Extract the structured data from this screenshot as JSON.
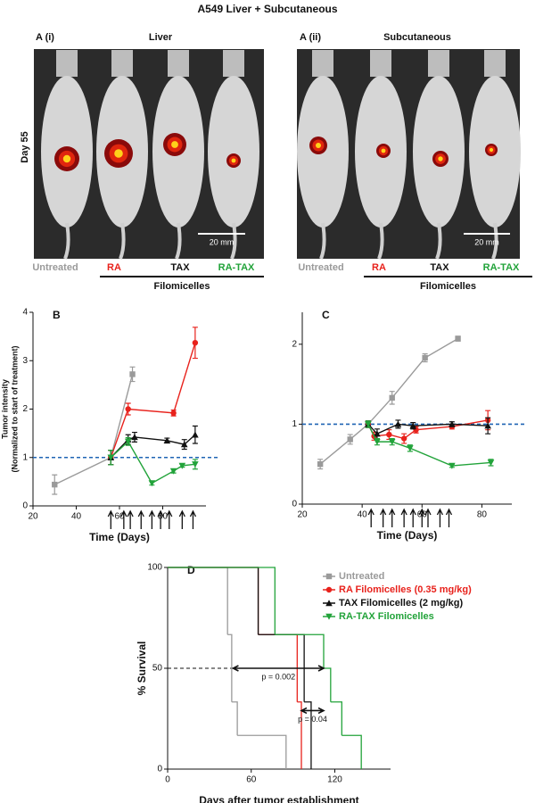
{
  "figure_title": "A549 Liver + Subcutaneous",
  "photo_panels": [
    {
      "label": "A (i)",
      "title": "Liver",
      "timepoint": "Day 55",
      "scale_bar": "20 mm",
      "groups": [
        {
          "name": "Untreated",
          "color": "#9a9a9a"
        },
        {
          "name": "RA",
          "color": "#e8221c"
        },
        {
          "name": "TAX",
          "color": "#111111"
        },
        {
          "name": "RA-TAX",
          "color": "#22a33a"
        }
      ],
      "bracket": "Filomicelles"
    },
    {
      "label": "A (ii)",
      "title": "Subcutaneous",
      "scale_bar": "20 mm",
      "groups": [
        {
          "name": "Untreated",
          "color": "#9a9a9a"
        },
        {
          "name": "RA",
          "color": "#e8221c"
        },
        {
          "name": "TAX",
          "color": "#111111"
        },
        {
          "name": "RA-TAX",
          "color": "#22a33a"
        }
      ],
      "bracket": "Filomicelles"
    }
  ],
  "chart_data": [
    {
      "type": "line",
      "panel": "B",
      "ylabel": [
        "Tumor intensity",
        "(Normalized to start of treatment)"
      ],
      "xlabel": "Time (Days)",
      "xlim": [
        20,
        100
      ],
      "ylim": [
        0,
        4
      ],
      "xticks": [
        20,
        40,
        60,
        80
      ],
      "yticks": [
        0,
        1,
        2,
        3,
        4
      ],
      "reference_line": 1,
      "reference_color": "#1f64b4",
      "arrows": [
        56,
        62,
        65,
        70,
        75,
        79,
        83,
        89,
        94
      ],
      "series": [
        {
          "color": "#9a9a9a",
          "marker": "square",
          "x": [
            30,
            56,
            66
          ],
          "values": [
            0.44,
            1.0,
            2.72
          ],
          "errors": [
            0.2,
            0.15,
            0.15
          ]
        },
        {
          "color": "#e8221c",
          "marker": "circle",
          "x": [
            56,
            64,
            85,
            95
          ],
          "values": [
            1.0,
            2.0,
            1.92,
            3.37
          ],
          "errors": [
            0.15,
            0.12,
            0.06,
            0.32
          ]
        },
        {
          "color": "#111111",
          "marker": "triangle-up",
          "x": [
            56,
            64,
            67,
            82,
            90,
            95
          ],
          "values": [
            1.0,
            1.37,
            1.42,
            1.35,
            1.27,
            1.47
          ],
          "errors": [
            0.15,
            0.1,
            0.1,
            0.05,
            0.1,
            0.18
          ]
        },
        {
          "color": "#22a33a",
          "marker": "triangle-down",
          "x": [
            56,
            64,
            75,
            85,
            89,
            95
          ],
          "values": [
            1.0,
            1.33,
            0.47,
            0.72,
            0.83,
            0.86
          ],
          "errors": [
            0.15,
            0.08,
            0.04,
            0.04,
            0.03,
            0.1
          ]
        }
      ]
    },
    {
      "type": "line",
      "panel": "C",
      "xlabel": "Time (Days)",
      "xlim": [
        20,
        90
      ],
      "ylim": [
        0,
        2.4
      ],
      "xticks": [
        20,
        40,
        60,
        80
      ],
      "yticks": [
        0,
        1,
        2
      ],
      "reference_line": 1,
      "reference_color": "#1f64b4",
      "arrows": [
        43,
        47,
        50,
        54,
        57,
        60,
        62,
        66,
        69
      ],
      "series": [
        {
          "color": "#9a9a9a",
          "marker": "square",
          "x": [
            26,
            36,
            42,
            50,
            61,
            72
          ],
          "values": [
            0.5,
            0.81,
            1.0,
            1.33,
            1.83,
            2.07
          ],
          "errors": [
            0.06,
            0.06,
            0.04,
            0.08,
            0.05,
            0.03
          ]
        },
        {
          "color": "#e8221c",
          "marker": "circle",
          "x": [
            42,
            44,
            49,
            54,
            58,
            70,
            82
          ],
          "values": [
            1.0,
            0.85,
            0.87,
            0.82,
            0.93,
            0.97,
            1.05
          ],
          "errors": [
            0.04,
            0.05,
            0.06,
            0.06,
            0.04,
            0.03,
            0.12
          ]
        },
        {
          "color": "#111111",
          "marker": "triangle-up",
          "x": [
            42,
            45,
            52,
            57,
            70,
            82
          ],
          "values": [
            1.0,
            0.88,
            1.0,
            0.98,
            1.0,
            0.98
          ],
          "errors": [
            0.04,
            0.06,
            0.05,
            0.04,
            0.03,
            0.1
          ]
        },
        {
          "color": "#22a33a",
          "marker": "triangle-down",
          "x": [
            42,
            45,
            50,
            56,
            70,
            83
          ],
          "values": [
            1.0,
            0.78,
            0.78,
            0.7,
            0.48,
            0.52
          ],
          "errors": [
            0.04,
            0.04,
            0.04,
            0.04,
            0.02,
            0.04
          ]
        }
      ]
    },
    {
      "type": "step",
      "panel": "D",
      "ylabel": "% Survival",
      "xlabel": "Days after tumor establishment",
      "xlim": [
        0,
        160
      ],
      "ylim": [
        0,
        100
      ],
      "xticks": [
        0,
        60,
        120
      ],
      "yticks": [
        0,
        50,
        100
      ],
      "reference_line": 50,
      "reference_color": "#111111",
      "legend": "upper right",
      "series": [
        {
          "name": "Untreated",
          "color": "#9a9a9a",
          "marker": "square",
          "x": [
            0,
            43,
            46,
            50,
            85
          ],
          "values": [
            100,
            66.7,
            33.3,
            16.7,
            0
          ]
        },
        {
          "name": "RA Filomicelles (0.35 mg/kg)",
          "color": "#e8221c",
          "marker": "circle",
          "x": [
            0,
            65,
            93,
            96
          ],
          "values": [
            100,
            66.7,
            33.3,
            0
          ]
        },
        {
          "name": "TAX Filomicelles (2 mg/kg)",
          "color": "#111111",
          "marker": "triangle-up",
          "x": [
            0,
            65,
            98,
            103
          ],
          "values": [
            100,
            66.7,
            33.3,
            0
          ]
        },
        {
          "name": "RA-TAX Filomicelles",
          "color": "#22a33a",
          "marker": "triangle-down",
          "x": [
            0,
            77,
            112,
            117,
            125,
            139
          ],
          "values": [
            100,
            66.7,
            50,
            33.3,
            16.7,
            0
          ]
        }
      ],
      "comparisons": [
        {
          "label": "p = 0.002",
          "x": [
            47,
            112
          ],
          "y": 50
        },
        {
          "label": "p = 0.04",
          "x": [
            96,
            112
          ],
          "y": 29
        }
      ]
    }
  ]
}
